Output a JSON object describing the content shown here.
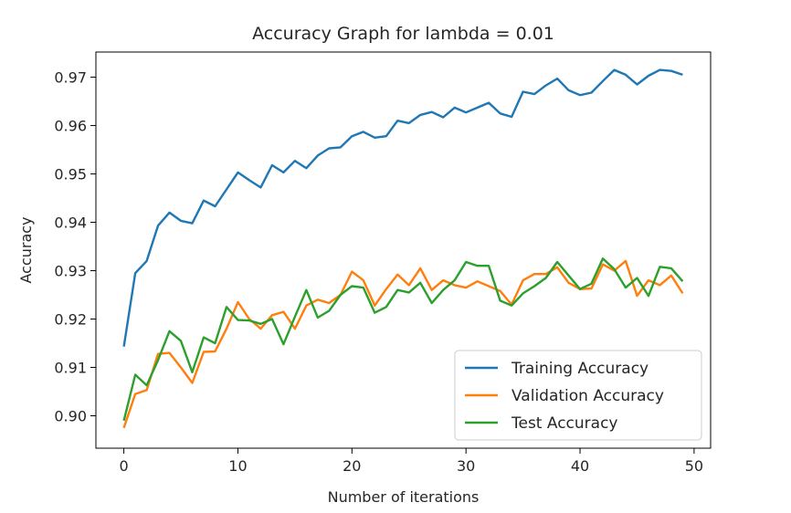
{
  "chart_data": {
    "type": "line",
    "title": "Accuracy Graph for lambda = 0.01",
    "xlabel": "Number of iterations",
    "ylabel": "Accuracy",
    "xlim": [
      -2.45,
      51.45
    ],
    "ylim": [
      0.8933,
      0.9752
    ],
    "xticks": [
      0,
      10,
      20,
      30,
      40,
      50
    ],
    "yticks": [
      0.9,
      0.91,
      0.92,
      0.93,
      0.94,
      0.95,
      0.96,
      0.97
    ],
    "xtick_labels": [
      "0",
      "10",
      "20",
      "30",
      "40",
      "50"
    ],
    "ytick_labels": [
      "0.90",
      "0.91",
      "0.92",
      "0.93",
      "0.94",
      "0.95",
      "0.96",
      "0.97"
    ],
    "grid": false,
    "legend_position": "lower right",
    "x": [
      0,
      1,
      2,
      3,
      4,
      5,
      6,
      7,
      8,
      9,
      10,
      11,
      12,
      13,
      14,
      15,
      16,
      17,
      18,
      19,
      20,
      21,
      22,
      23,
      24,
      25,
      26,
      27,
      28,
      29,
      30,
      31,
      32,
      33,
      34,
      35,
      36,
      37,
      38,
      39,
      40,
      41,
      42,
      43,
      44,
      45,
      46,
      47,
      48,
      49
    ],
    "series": [
      {
        "name": "Training Accuracy",
        "color": "#1f77b4",
        "values": [
          0.9143,
          0.9295,
          0.932,
          0.9393,
          0.942,
          0.9403,
          0.9398,
          0.9445,
          0.9433,
          0.9468,
          0.9503,
          0.9487,
          0.9472,
          0.9518,
          0.9503,
          0.9527,
          0.9512,
          0.9538,
          0.9553,
          0.9555,
          0.9578,
          0.9587,
          0.9575,
          0.9578,
          0.961,
          0.9605,
          0.9622,
          0.9628,
          0.9617,
          0.9637,
          0.9627,
          0.9637,
          0.9647,
          0.9625,
          0.9618,
          0.967,
          0.9665,
          0.9683,
          0.9697,
          0.9673,
          0.9663,
          0.9668,
          0.9692,
          0.9715,
          0.9705,
          0.9685,
          0.9703,
          0.9715,
          0.9713,
          0.9705
        ]
      },
      {
        "name": "Validation Accuracy",
        "color": "#ff7f0e",
        "values": [
          0.8975,
          0.9045,
          0.9053,
          0.9128,
          0.913,
          0.91,
          0.9068,
          0.9132,
          0.9133,
          0.918,
          0.9235,
          0.92,
          0.918,
          0.9208,
          0.9215,
          0.918,
          0.9228,
          0.924,
          0.9233,
          0.925,
          0.9298,
          0.928,
          0.9228,
          0.9262,
          0.9292,
          0.927,
          0.9305,
          0.926,
          0.928,
          0.927,
          0.9265,
          0.9278,
          0.9268,
          0.9258,
          0.923,
          0.928,
          0.9293,
          0.9293,
          0.9307,
          0.9275,
          0.9262,
          0.9263,
          0.9313,
          0.93,
          0.932,
          0.9248,
          0.928,
          0.927,
          0.929,
          0.9253
        ]
      },
      {
        "name": "Test Accuracy",
        "color": "#2ca02c",
        "values": [
          0.899,
          0.9085,
          0.9063,
          0.9115,
          0.9175,
          0.9155,
          0.909,
          0.9162,
          0.915,
          0.9225,
          0.9198,
          0.9197,
          0.919,
          0.92,
          0.9148,
          0.9205,
          0.926,
          0.9203,
          0.9217,
          0.925,
          0.9268,
          0.9265,
          0.9213,
          0.9225,
          0.926,
          0.9255,
          0.9275,
          0.9233,
          0.926,
          0.928,
          0.9318,
          0.931,
          0.931,
          0.9238,
          0.9228,
          0.9253,
          0.9268,
          0.9285,
          0.9318,
          0.929,
          0.9262,
          0.9273,
          0.9325,
          0.9303,
          0.9265,
          0.9285,
          0.9248,
          0.9308,
          0.9305,
          0.9278
        ]
      }
    ]
  }
}
